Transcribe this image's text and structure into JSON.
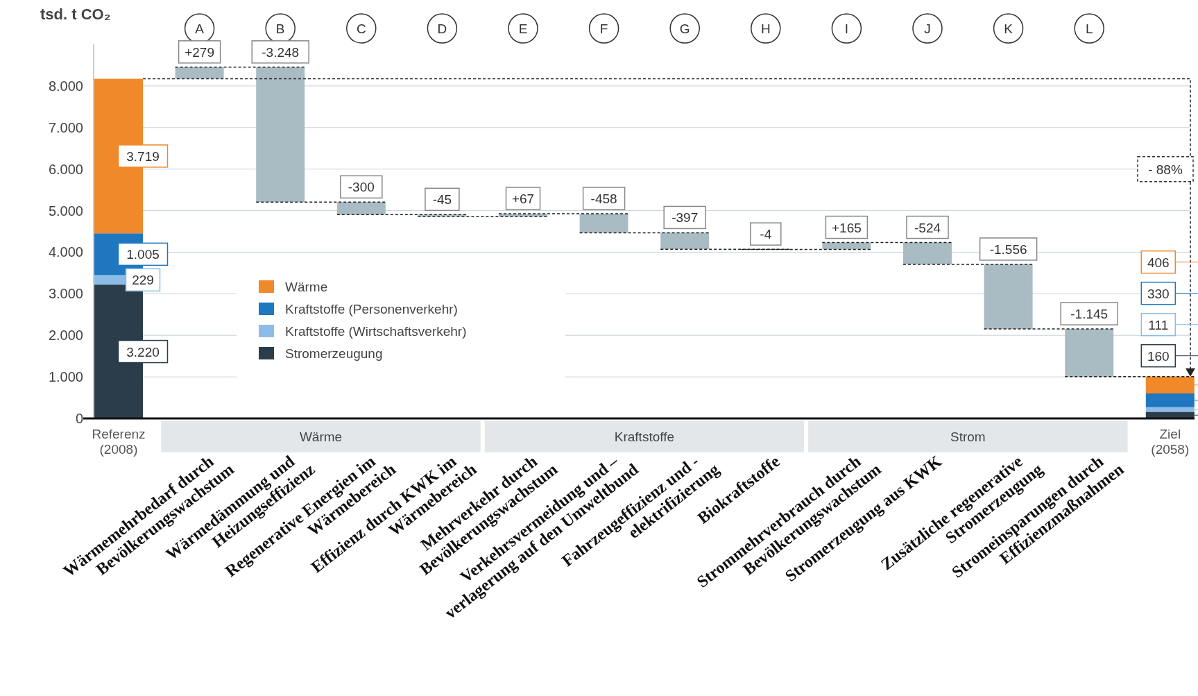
{
  "chart_data": {
    "type": "bar",
    "stacked": true,
    "ylabel": "tsd. t CO₂",
    "categories": [
      "Referenz\n(2008)",
      "Wärmemehrbedarf durch\nBevölkerungswachstum",
      "Wärmedämmung und\nHeizungseffizienz",
      "Regenerative Energien im\nWärmebereich",
      "Effizienz durch KWK im\nWärmebereich",
      "Mehrverkehr durch\nBevölkerungswachstum",
      "Verkehrsvermeidung und –\nverlagerung auf den Umweltbund",
      "Fahrzeugeffizienz und -\nelektrifizierung",
      "Biokraftstoffe",
      "Strommehrverbrauch durch\nBevölkerungswachstum",
      "Stromerzeugung aus KWK",
      "Zusätzliche regenerative\nStromerzeugung",
      "Stromeinsparungen durch\nEffizienzmaßnahmen",
      "Ziel\n(2058)"
    ],
    "series": [
      {
        "name": "Stromerzeugung",
        "color": "#2b3d4a",
        "values": [
          3220,
          null,
          null,
          null,
          null,
          null,
          null,
          null,
          null,
          null,
          null,
          null,
          null,
          160
        ],
        "value_labels": [
          "3.220",
          null,
          null,
          null,
          null,
          null,
          null,
          null,
          null,
          null,
          null,
          null,
          null,
          "160"
        ]
      },
      {
        "name": "Kraftstoffe (Wirtschaftsverkehr)",
        "color": "#8dbde6",
        "values": [
          229,
          null,
          null,
          null,
          null,
          null,
          null,
          null,
          null,
          null,
          null,
          null,
          null,
          111
        ],
        "value_labels": [
          "229",
          null,
          null,
          null,
          null,
          null,
          null,
          null,
          null,
          null,
          null,
          null,
          null,
          "111"
        ]
      },
      {
        "name": "Kraftstoffe (Personenverkehr)",
        "color": "#1f77c0",
        "values": [
          1005,
          null,
          null,
          null,
          null,
          null,
          null,
          null,
          null,
          null,
          null,
          null,
          null,
          330
        ],
        "value_labels": [
          "1.005",
          null,
          null,
          null,
          null,
          null,
          null,
          null,
          null,
          null,
          null,
          null,
          null,
          "330"
        ]
      },
      {
        "name": "Wärme",
        "color": "#f0892a",
        "values": [
          3719,
          null,
          null,
          null,
          null,
          null,
          null,
          null,
          null,
          null,
          null,
          null,
          null,
          406
        ],
        "value_labels": [
          "3.719",
          null,
          null,
          null,
          null,
          null,
          null,
          null,
          null,
          null,
          null,
          null,
          null,
          "406"
        ]
      },
      {
        "color": "#a9bcc4",
        "values": [
          null,
          279,
          -3248,
          -300,
          -45,
          67,
          -458,
          -397,
          -4,
          165,
          -524,
          -1556,
          -1145,
          null
        ],
        "base": [
          null,
          8173,
          8452,
          5204,
          4904,
          4859,
          4926,
          4468,
          4071,
          4067,
          4232,
          3708,
          2152,
          null
        ],
        "value_labels": [
          null,
          "+279",
          "-3.248",
          "-300",
          "-45",
          "+67",
          "-458",
          "-397",
          "-4",
          "+165",
          "-524",
          "-1.556",
          "-1.145",
          null
        ]
      }
    ],
    "ylim": [
      0,
      9000
    ],
    "yticks": [
      0,
      {
        "value": 1000,
        "label": "1.000"
      },
      {
        "value": 2000,
        "label": "2.000"
      },
      {
        "value": 3000,
        "label": "3.000"
      },
      {
        "value": 4000,
        "label": "4.000"
      },
      {
        "value": 5000,
        "label": "5.000"
      },
      {
        "value": 6000,
        "label": "6.000"
      },
      {
        "value": 7000,
        "label": "7.000"
      },
      {
        "value": 8000,
        "label": "8.000"
      }
    ],
    "grid": "y",
    "legend": "center left",
    "annotations": [
      "A",
      "B",
      "C",
      "D",
      "E",
      "F",
      "G",
      "H",
      "I",
      "J",
      "K",
      "L",
      "Wärme",
      "Kraftstoffe",
      "Strom",
      "- 88%"
    ]
  }
}
